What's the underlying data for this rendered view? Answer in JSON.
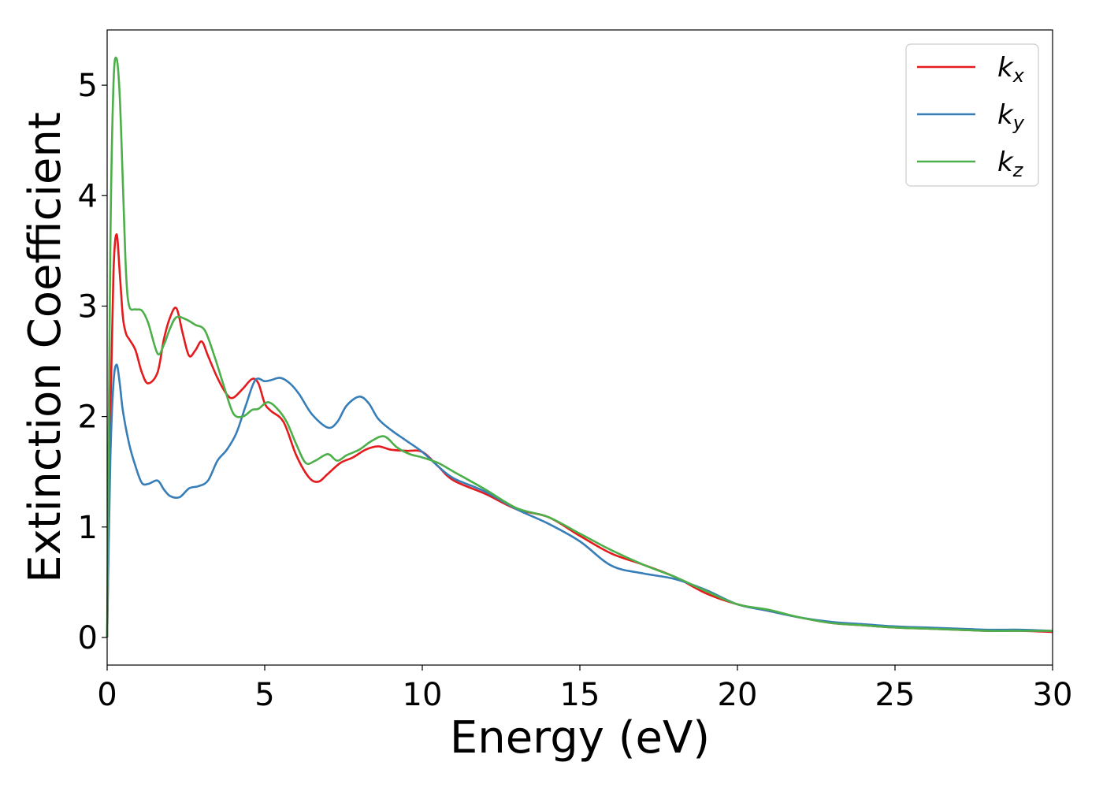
{
  "chart_data": {
    "type": "line",
    "xlabel": "Energy (eV)",
    "ylabel": "Extinction Coefficient",
    "xlim": [
      0,
      30
    ],
    "ylim": [
      -0.25,
      5.5
    ],
    "xticks": [
      0,
      5,
      10,
      15,
      20,
      25,
      30
    ],
    "yticks": [
      0,
      1,
      2,
      3,
      4,
      5
    ],
    "grid": false,
    "legend_position": "top-right",
    "series": [
      {
        "name": "k_x",
        "label_base": "k",
        "label_sub": "x",
        "color": "#e41a1c",
        "x": [
          0,
          0.1,
          0.2,
          0.3,
          0.4,
          0.5,
          0.6,
          0.7,
          0.9,
          1.1,
          1.3,
          1.6,
          1.8,
          2.0,
          2.2,
          2.4,
          2.6,
          2.8,
          3.0,
          3.2,
          3.5,
          3.8,
          4.0,
          4.3,
          4.6,
          4.8,
          5.0,
          5.2,
          5.6,
          6.0,
          6.4,
          6.7,
          7.0,
          7.4,
          7.8,
          8.2,
          8.6,
          9.0,
          9.5,
          10.0,
          10.5,
          11.0,
          12.0,
          13.0,
          14.0,
          15.0,
          16.0,
          17.0,
          18.0,
          19.0,
          20.0,
          21.0,
          22.0,
          23.0,
          24.0,
          25.0,
          26.0,
          27.0,
          28.0,
          29.0,
          30.0
        ],
        "y": [
          0.0,
          2.0,
          3.3,
          3.65,
          3.3,
          2.9,
          2.75,
          2.7,
          2.6,
          2.4,
          2.3,
          2.4,
          2.7,
          2.9,
          2.98,
          2.75,
          2.55,
          2.6,
          2.68,
          2.55,
          2.35,
          2.2,
          2.17,
          2.25,
          2.34,
          2.3,
          2.12,
          2.05,
          1.95,
          1.65,
          1.45,
          1.41,
          1.48,
          1.58,
          1.63,
          1.7,
          1.73,
          1.7,
          1.69,
          1.68,
          1.55,
          1.42,
          1.3,
          1.16,
          1.09,
          0.92,
          0.76,
          0.66,
          0.55,
          0.4,
          0.3,
          0.24,
          0.18,
          0.13,
          0.11,
          0.09,
          0.08,
          0.07,
          0.06,
          0.06,
          0.05
        ]
      },
      {
        "name": "k_y",
        "label_base": "k",
        "label_sub": "y",
        "color": "#377eb8",
        "x": [
          0,
          0.1,
          0.2,
          0.3,
          0.4,
          0.5,
          0.7,
          0.9,
          1.1,
          1.3,
          1.6,
          1.8,
          2.0,
          2.3,
          2.6,
          2.9,
          3.2,
          3.5,
          3.8,
          4.1,
          4.4,
          4.7,
          5.0,
          5.2,
          5.5,
          5.8,
          6.1,
          6.5,
          7.0,
          7.3,
          7.6,
          8.0,
          8.3,
          8.6,
          9.0,
          9.5,
          10.0,
          10.5,
          11.0,
          12.0,
          13.0,
          14.0,
          15.0,
          16.0,
          17.0,
          18.0,
          19.0,
          20.0,
          21.0,
          22.0,
          23.0,
          24.0,
          25.0,
          26.0,
          27.0,
          28.0,
          29.0,
          30.0
        ],
        "y": [
          0.0,
          1.6,
          2.3,
          2.47,
          2.3,
          2.05,
          1.75,
          1.55,
          1.4,
          1.39,
          1.42,
          1.34,
          1.28,
          1.27,
          1.35,
          1.37,
          1.42,
          1.6,
          1.7,
          1.85,
          2.1,
          2.33,
          2.32,
          2.33,
          2.35,
          2.3,
          2.2,
          2.02,
          1.9,
          1.95,
          2.1,
          2.18,
          2.12,
          1.98,
          1.88,
          1.78,
          1.68,
          1.55,
          1.44,
          1.32,
          1.16,
          1.03,
          0.87,
          0.65,
          0.58,
          0.53,
          0.43,
          0.3,
          0.24,
          0.18,
          0.14,
          0.12,
          0.1,
          0.09,
          0.08,
          0.07,
          0.07,
          0.06
        ]
      },
      {
        "name": "k_z",
        "label_base": "k",
        "label_sub": "z",
        "color": "#4daf4a",
        "x": [
          0,
          0.1,
          0.2,
          0.3,
          0.4,
          0.5,
          0.6,
          0.7,
          0.9,
          1.1,
          1.3,
          1.6,
          1.8,
          2.0,
          2.2,
          2.5,
          2.8,
          3.1,
          3.4,
          3.7,
          4.0,
          4.3,
          4.6,
          4.8,
          5.1,
          5.4,
          5.7,
          6.0,
          6.3,
          6.6,
          7.0,
          7.3,
          7.6,
          8.0,
          8.4,
          8.8,
          9.2,
          9.6,
          10.0,
          10.5,
          11.0,
          12.0,
          13.0,
          14.0,
          15.0,
          16.0,
          17.0,
          18.0,
          19.0,
          20.0,
          21.0,
          22.0,
          23.0,
          24.0,
          25.0,
          26.0,
          27.0,
          28.0,
          29.0,
          30.0
        ],
        "y": [
          0.0,
          3.5,
          5.0,
          5.24,
          4.9,
          4.1,
          3.3,
          3.0,
          2.97,
          2.96,
          2.85,
          2.57,
          2.65,
          2.8,
          2.9,
          2.88,
          2.83,
          2.78,
          2.55,
          2.28,
          2.03,
          2.0,
          2.06,
          2.07,
          2.13,
          2.07,
          1.95,
          1.75,
          1.58,
          1.6,
          1.66,
          1.6,
          1.65,
          1.7,
          1.78,
          1.82,
          1.72,
          1.66,
          1.63,
          1.58,
          1.5,
          1.34,
          1.17,
          1.09,
          0.94,
          0.79,
          0.66,
          0.55,
          0.42,
          0.3,
          0.25,
          0.18,
          0.13,
          0.11,
          0.09,
          0.08,
          0.07,
          0.06,
          0.06,
          0.06
        ]
      }
    ]
  }
}
